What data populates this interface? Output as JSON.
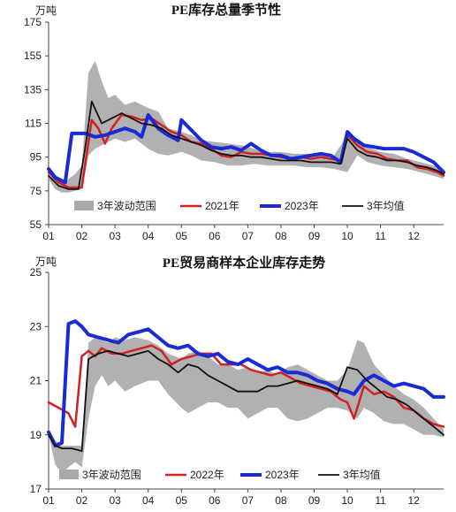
{
  "chart_data": [
    {
      "type": "line",
      "title": "PE库存总量季节性",
      "unit": "万吨",
      "categories": [
        "01",
        "02",
        "03",
        "04",
        "05",
        "06",
        "07",
        "08",
        "09",
        "10",
        "11",
        "12"
      ],
      "yticks": [
        "55",
        "75",
        "95",
        "115",
        "135",
        "155",
        "175"
      ],
      "ylim": [
        55,
        175
      ],
      "xlim": [
        1,
        12.9
      ],
      "legend_position": "bottom-center",
      "band": {
        "name": "3年波动范围",
        "color": "#a9a9a9",
        "x": [
          1.0,
          1.2,
          1.4,
          1.6,
          1.8,
          2.0,
          2.2,
          2.4,
          2.6,
          2.8,
          3.0,
          3.3,
          3.6,
          4.0,
          4.3,
          4.6,
          5.0,
          5.3,
          5.6,
          6.0,
          6.4,
          6.8,
          7.2,
          7.6,
          8.0,
          8.4,
          8.8,
          9.2,
          9.6,
          10.0,
          10.3,
          10.6,
          11.0,
          11.4,
          11.8,
          12.2,
          12.6,
          12.9
        ],
        "high": [
          84,
          82,
          80,
          82,
          85,
          90,
          145,
          152,
          140,
          130,
          132,
          126,
          128,
          124,
          122,
          112,
          110,
          108,
          105,
          104,
          103,
          102,
          100,
          98,
          98,
          97,
          97,
          96,
          96,
          108,
          106,
          101,
          98,
          97,
          94,
          92,
          90,
          88
        ],
        "low": [
          82,
          76,
          74,
          74,
          75,
          76,
          96,
          100,
          102,
          104,
          106,
          104,
          106,
          100,
          97,
          96,
          98,
          96,
          93,
          92,
          90,
          90,
          91,
          90,
          90,
          90,
          89,
          89,
          88,
          86,
          96,
          92,
          90,
          89,
          88,
          86,
          84,
          82
        ]
      },
      "series": [
        {
          "name": "2021年",
          "color": "#d42020",
          "width": 2.5,
          "x": [
            1.0,
            1.3,
            1.6,
            1.9,
            2.0,
            2.3,
            2.5,
            2.7,
            2.9,
            3.2,
            3.5,
            3.8,
            4.1,
            4.4,
            4.7,
            5.0,
            5.3,
            5.6,
            5.9,
            6.2,
            6.5,
            6.8,
            7.1,
            7.4,
            7.7,
            8.0,
            8.3,
            8.6,
            8.9,
            9.2,
            9.5,
            9.8,
            10.0,
            10.3,
            10.6,
            10.9,
            11.2,
            11.5,
            11.8,
            12.1,
            12.4,
            12.7,
            12.9
          ],
          "y": [
            86,
            80,
            77,
            77,
            77,
            117,
            112,
            103,
            112,
            120,
            119,
            117,
            118,
            114,
            110,
            108,
            104,
            103,
            100,
            96,
            95,
            98,
            97,
            97,
            96,
            95,
            94,
            95,
            94,
            95,
            94,
            93,
            108,
            102,
            98,
            97,
            94,
            93,
            93,
            89,
            88,
            86,
            84
          ]
        },
        {
          "name": "2023年",
          "color": "#1a2bd6",
          "width": 4,
          "x": [
            1.0,
            1.2,
            1.5,
            1.7,
            1.9,
            2.1,
            2.4,
            2.7,
            3.0,
            3.3,
            3.6,
            3.8,
            4.0,
            4.3,
            4.6,
            4.9,
            5.0,
            5.3,
            5.6,
            5.9,
            6.2,
            6.5,
            6.8,
            7.1,
            7.4,
            7.7,
            8.0,
            8.3,
            8.6,
            8.9,
            9.2,
            9.5,
            9.8,
            10.0,
            10.2,
            10.5,
            10.8,
            11.1,
            11.4,
            11.7,
            12.0,
            12.3,
            12.6,
            12.9
          ],
          "y": [
            88,
            83,
            80,
            109,
            109,
            109,
            107,
            108,
            110,
            112,
            110,
            107,
            120,
            112,
            108,
            105,
            117,
            111,
            105,
            101,
            100,
            101,
            99,
            103,
            99,
            96,
            96,
            94,
            95,
            96,
            97,
            96,
            92,
            110,
            106,
            102,
            101,
            100,
            100,
            100,
            98,
            95,
            92,
            86
          ]
        },
        {
          "name": "3年均值",
          "color": "#111111",
          "width": 1.8,
          "x": [
            1.0,
            1.3,
            1.6,
            1.9,
            2.1,
            2.3,
            2.6,
            2.9,
            3.2,
            3.5,
            3.8,
            4.1,
            4.4,
            4.7,
            5.0,
            5.3,
            5.6,
            5.9,
            6.2,
            6.5,
            6.8,
            7.1,
            7.4,
            7.7,
            8.0,
            8.3,
            8.6,
            8.9,
            9.2,
            9.5,
            9.8,
            10.0,
            10.3,
            10.6,
            10.9,
            11.2,
            11.5,
            11.8,
            12.1,
            12.4,
            12.7,
            12.9
          ],
          "y": [
            84,
            78,
            76,
            76,
            100,
            128,
            115,
            118,
            121,
            118,
            115,
            114,
            112,
            108,
            106,
            104,
            102,
            99,
            97,
            96,
            96,
            95,
            95,
            94,
            93,
            93,
            93,
            92,
            92,
            92,
            91,
            106,
            99,
            96,
            95,
            93,
            93,
            92,
            90,
            89,
            87,
            85
          ]
        }
      ]
    },
    {
      "type": "line",
      "title": "PE贸易商样本企业库存走势",
      "unit": "万吨",
      "categories": [
        "01",
        "02",
        "03",
        "04",
        "05",
        "06",
        "07",
        "08",
        "09",
        "10",
        "11",
        "12"
      ],
      "yticks": [
        "17",
        "19",
        "21",
        "23",
        "25"
      ],
      "ylim": [
        17,
        25
      ],
      "xlim": [
        1,
        12.9
      ],
      "legend_position": "bottom-center",
      "band": {
        "name": "3年波动范围",
        "color": "#a9a9a9",
        "x": [
          1.0,
          1.2,
          1.4,
          1.6,
          1.8,
          2.0,
          2.2,
          2.4,
          2.6,
          2.8,
          3.0,
          3.3,
          3.6,
          4.0,
          4.3,
          4.6,
          5.0,
          5.2,
          5.5,
          5.8,
          6.1,
          6.4,
          6.7,
          7.0,
          7.3,
          7.6,
          7.9,
          8.2,
          8.5,
          8.8,
          9.1,
          9.4,
          9.7,
          10.0,
          10.3,
          10.5,
          10.8,
          11.1,
          11.4,
          11.7,
          12.0,
          12.3,
          12.6,
          12.9
        ],
        "high": [
          19.2,
          18.8,
          18.6,
          18.6,
          18.6,
          18.6,
          22.4,
          22.6,
          22.5,
          22.4,
          22.6,
          22.5,
          22.6,
          22.5,
          22.3,
          22.0,
          21.8,
          22.0,
          22.1,
          21.9,
          21.6,
          21.6,
          21.4,
          21.5,
          21.3,
          21.4,
          21.2,
          21.5,
          21.6,
          21.4,
          21.2,
          21.0,
          21.0,
          21.4,
          22.5,
          22.4,
          21.6,
          21.2,
          20.8,
          20.5,
          20.3,
          20.0,
          19.6,
          19.2
        ],
        "low": [
          19.0,
          17.9,
          17.6,
          17.8,
          18.0,
          17.8,
          19.6,
          20.8,
          21.2,
          20.8,
          21.0,
          20.6,
          20.8,
          21.0,
          21.0,
          20.5,
          20.0,
          19.8,
          20.0,
          20.2,
          20.2,
          20.0,
          20.0,
          19.6,
          19.8,
          20.0,
          20.0,
          19.6,
          19.5,
          19.6,
          19.8,
          20.0,
          20.0,
          19.9,
          19.6,
          20.0,
          19.8,
          19.5,
          19.4,
          19.4,
          19.2,
          19.0,
          19.0,
          18.9
        ]
      },
      "series": [
        {
          "name": "2022年",
          "color": "#d42020",
          "width": 2.5,
          "x": [
            1.0,
            1.3,
            1.6,
            1.8,
            2.0,
            2.2,
            2.4,
            2.6,
            2.9,
            3.2,
            3.5,
            3.8,
            4.1,
            4.4,
            4.7,
            5.0,
            5.3,
            5.6,
            5.9,
            6.2,
            6.5,
            6.8,
            7.1,
            7.4,
            7.7,
            8.0,
            8.3,
            8.6,
            8.9,
            9.2,
            9.5,
            9.8,
            10.0,
            10.2,
            10.5,
            10.8,
            11.1,
            11.4,
            11.7,
            12.0,
            12.3,
            12.6,
            12.9
          ],
          "y": [
            20.2,
            20.0,
            19.8,
            19.3,
            21.9,
            22.1,
            21.9,
            22.2,
            22.0,
            22.0,
            22.1,
            22.2,
            22.3,
            22.1,
            21.6,
            21.8,
            21.9,
            22.0,
            22.0,
            21.6,
            21.6,
            21.6,
            21.4,
            21.3,
            21.2,
            21.3,
            21.1,
            20.9,
            20.8,
            20.7,
            20.6,
            20.3,
            20.2,
            19.6,
            20.8,
            20.5,
            20.6,
            20.4,
            20.0,
            19.9,
            19.6,
            19.4,
            19.3
          ]
        },
        {
          "name": "2023年",
          "color": "#1a2bd6",
          "width": 4,
          "x": [
            1.0,
            1.2,
            1.4,
            1.6,
            1.8,
            2.0,
            2.2,
            2.5,
            2.8,
            3.1,
            3.4,
            3.7,
            4.0,
            4.3,
            4.6,
            4.9,
            5.2,
            5.5,
            5.8,
            6.1,
            6.4,
            6.7,
            7.0,
            7.3,
            7.6,
            7.9,
            8.2,
            8.5,
            8.8,
            9.1,
            9.4,
            9.7,
            10.0,
            10.2,
            10.5,
            10.8,
            11.1,
            11.4,
            11.7,
            12.0,
            12.3,
            12.6,
            12.9
          ],
          "y": [
            19.1,
            18.6,
            18.7,
            23.1,
            23.2,
            23.0,
            22.7,
            22.6,
            22.5,
            22.4,
            22.7,
            22.8,
            22.9,
            22.6,
            22.3,
            22.2,
            22.3,
            22.0,
            21.9,
            22.0,
            21.7,
            21.6,
            21.8,
            21.6,
            21.4,
            21.5,
            21.3,
            21.3,
            21.2,
            21.0,
            20.9,
            20.7,
            20.6,
            20.5,
            21.0,
            21.2,
            21.0,
            20.8,
            20.9,
            20.8,
            20.7,
            20.4,
            20.4
          ]
        },
        {
          "name": "3年均值",
          "color": "#111111",
          "width": 1.8,
          "x": [
            1.0,
            1.2,
            1.4,
            1.7,
            2.0,
            2.2,
            2.5,
            2.8,
            3.1,
            3.4,
            3.7,
            4.0,
            4.3,
            4.6,
            4.9,
            5.2,
            5.5,
            5.8,
            6.1,
            6.4,
            6.7,
            7.0,
            7.3,
            7.6,
            7.9,
            8.2,
            8.5,
            8.8,
            9.1,
            9.4,
            9.7,
            10.0,
            10.3,
            10.6,
            10.9,
            11.2,
            11.5,
            11.8,
            12.1,
            12.4,
            12.7,
            12.9
          ],
          "y": [
            19.0,
            18.6,
            18.5,
            18.5,
            18.4,
            21.8,
            22.0,
            22.1,
            22.0,
            21.9,
            22.0,
            22.1,
            21.8,
            21.6,
            21.3,
            21.6,
            21.5,
            21.2,
            21.0,
            20.8,
            20.6,
            20.6,
            20.6,
            20.8,
            20.8,
            20.9,
            21.0,
            20.9,
            20.8,
            20.7,
            20.5,
            21.5,
            21.4,
            21.0,
            20.7,
            20.4,
            20.3,
            20.1,
            19.8,
            19.5,
            19.2,
            19.0
          ]
        }
      ]
    }
  ]
}
